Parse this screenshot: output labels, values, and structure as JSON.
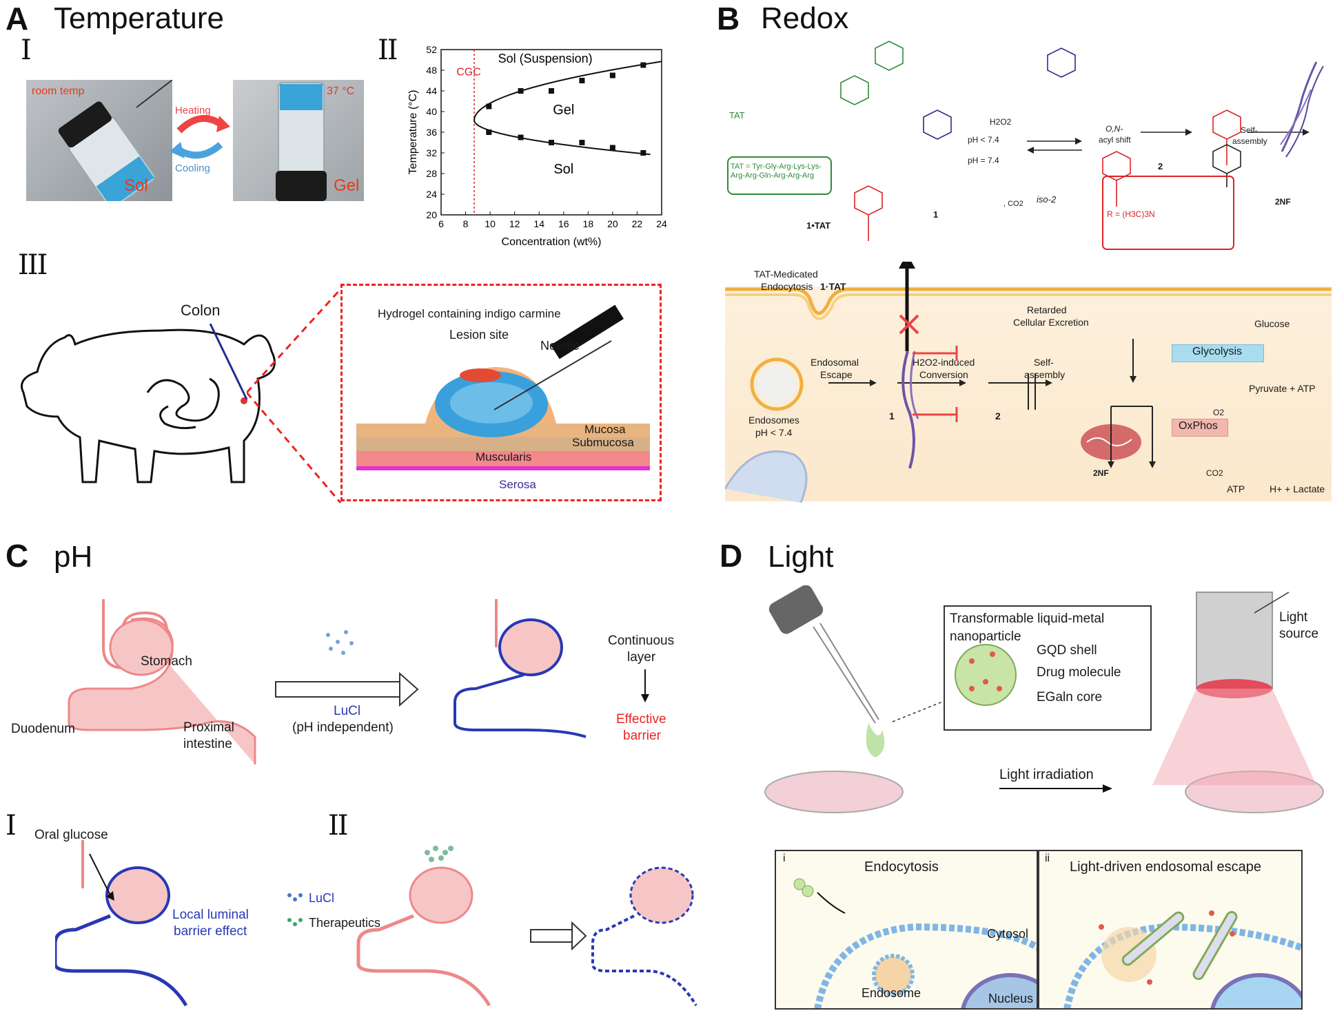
{
  "panels": {
    "A": {
      "letter": "A",
      "title": "Temperature",
      "sub_I": "I",
      "sub_II": "II",
      "sub_III": "III",
      "photo_left_caption": "room temp",
      "photo_left_state": "Sol",
      "photo_right_caption": "37 °C",
      "photo_right_state": "Gel",
      "heating": "Heating",
      "cooling": "Cooling",
      "colon": "Colon",
      "hydrogel": "Hydrogel containing indigo carmine",
      "lesion": "Lesion site",
      "needle": "Needle",
      "mucosa": "Mucosa",
      "submucosa": "Submucosa",
      "muscularis": "Muscularis",
      "serosa": "Serosa"
    },
    "B": {
      "letter": "B",
      "title": "Redox",
      "tat_box": "TAT = Tyr-Gly-Arg-Lys-Lys-Arg-Arg-Gln-Arg-Arg-Arg",
      "tat": "TAT",
      "cpd_1tat": "1•TAT",
      "cpd_1": "1",
      "cpd_iso2": "iso-2",
      "cpd_2": "2",
      "cpd_2nf": "2NF",
      "ph_lt": "pH < 7.4",
      "ph_eq": "pH = 7.4",
      "h2o2": "H2O2",
      "co2": ", CO2",
      "acyl_shift_1": "O,N-",
      "acyl_shift_2": "acyl shift",
      "self_assembly_1": "Self-",
      "self_assembly_2": "assembly",
      "r_group": "R = (H3C)3N",
      "tat_endocytosis_1": "TAT-Medicated",
      "tat_endocytosis_2": "Endocytosis",
      "cell_1tat": "1·TAT",
      "retarded_1": "Retarded",
      "retarded_2": "Cellular Excretion",
      "endosomal_escape_1": "Endosomal",
      "endosomal_escape_2": "Escape",
      "h2o2_conv_1": "H2O2-induced",
      "h2o2_conv_2": "Conversion",
      "self_asm_cell_1": "Self-",
      "self_asm_cell_2": "assembly",
      "endosomes_1": "Endosomes",
      "endosomes_2": "pH < 7.4",
      "glucose": "Glucose",
      "glycolysis": "Glycolysis",
      "pyruvate": "Pyruvate + ATP",
      "oxphos": "OxPhos",
      "o2": "O2",
      "co2_cell": "CO2",
      "atp": "ATP",
      "lactate": "H+ + Lactate"
    },
    "C": {
      "letter": "C",
      "title": "pH",
      "stomach": "Stomach",
      "duodenum": "Duodenum",
      "proximal_1": "Proximal",
      "proximal_2": "intestine",
      "lucl": "LuCl",
      "ph_indep": "(pH independent)",
      "continuous_1": "Continuous",
      "continuous_2": "layer",
      "effective_1": "Effective",
      "effective_2": "barrier",
      "sub_I": "I",
      "sub_II": "II",
      "oral_glucose": "Oral glucose",
      "local_1": "Local luminal",
      "local_2": "barrier effect",
      "legend_lucl": "LuCl",
      "legend_ther": "Therapeutics"
    },
    "D": {
      "letter": "D",
      "title": "Light",
      "transformable_1": "Transformable liquid-metal",
      "transformable_2": "nanoparticle",
      "gqd": "GQD shell",
      "drug": "Drug molecule",
      "egaln": "EGaln core",
      "light_source_1": "Light",
      "light_source_2": "source",
      "light_irradiation": "Light irradiation",
      "inset_i": "i",
      "inset_ii": "ii",
      "endocytosis": "Endocytosis",
      "light_driven": "Light-driven endosomal escape",
      "cytosol": "Cytosol",
      "endosome": "Endosome",
      "nucleus": "Nucleus"
    }
  },
  "phase_chart": {
    "chart_data": {
      "type": "scatter",
      "xlabel": "Concentration (wt%)",
      "ylabel": "Temperature (°C)",
      "xlim": [
        6,
        24
      ],
      "ylim": [
        20,
        52
      ],
      "x_ticks": [
        6,
        8,
        10,
        12,
        14,
        16,
        18,
        20,
        22,
        24
      ],
      "y_ticks": [
        20,
        24,
        28,
        32,
        36,
        40,
        44,
        48,
        52
      ],
      "cgc_x": 8.7,
      "cgc_label": "CGC",
      "region_top": "Sol (Suspension)",
      "region_mid": "Gel",
      "region_bot": "Sol",
      "series": [
        {
          "points": [
            [
              9.9,
              41
            ],
            [
              12.5,
              44
            ],
            [
              15,
              44
            ],
            [
              17.5,
              46
            ],
            [
              20,
              47
            ],
            [
              22.5,
              49
            ]
          ]
        },
        {
          "points": [
            [
              9.9,
              36
            ],
            [
              12.5,
              35
            ],
            [
              15,
              34
            ],
            [
              17.5,
              34
            ],
            [
              20,
              33
            ],
            [
              22.5,
              32
            ]
          ]
        }
      ]
    }
  }
}
